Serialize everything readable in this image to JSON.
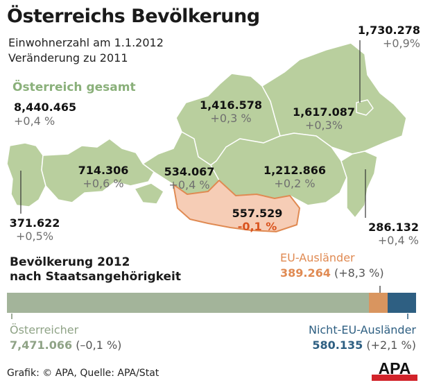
{
  "title": "Österreichs Bevölkerung",
  "subtitle_line1": "Einwohnerzahl am 1.1.2012",
  "subtitle_line2": "Veränderung zu 2011",
  "total": {
    "label": "Österreich gesamt",
    "value": "8,440.465",
    "change": "+0,4 %"
  },
  "states": [
    {
      "value": "371.622",
      "change": "+0,5%"
    },
    {
      "value": "714.306",
      "change": "+0,6 %"
    },
    {
      "value": "534.067",
      "change": "+0,4 %"
    },
    {
      "value": "1,416.578",
      "change": "+0,3 %"
    },
    {
      "value": "1,617.087",
      "change": "+0,3%"
    },
    {
      "value": "1,730.278",
      "change": "+0,9%"
    },
    {
      "value": "1,212.866",
      "change": "+0,2 %"
    },
    {
      "value": "557.529",
      "change": "-0,1 %"
    },
    {
      "value": "286.132",
      "change": "+0,4 %"
    }
  ],
  "citizenship": {
    "title_line1": "Bevölkerung 2012",
    "title_line2": "nach Staatsangehörigkeit",
    "groups": [
      {
        "label": "Österreicher",
        "value": "7,471.066",
        "change": "(–0,1 %)",
        "amount": 7471066,
        "color": "#a3b49a"
      },
      {
        "label": "EU-Ausländer",
        "value": "389.264",
        "change": "(+8,3 %)",
        "amount": 389264,
        "color": "#d9955f"
      },
      {
        "label": "Nicht-EU-Ausländer",
        "value": "580.135",
        "change": "(+2,1 %)",
        "amount": 580135,
        "color": "#2e5f82"
      }
    ]
  },
  "footer": "Grafik: © APA, Quelle: APA/Stat",
  "logo_text": "APA",
  "colors": {
    "region_fill": "#b9cf9e",
    "region_stroke": "#ffffff",
    "highlight_fill": "#f6cdb6",
    "highlight_stroke": "#e08a52",
    "label_negative": "#d9531e"
  }
}
